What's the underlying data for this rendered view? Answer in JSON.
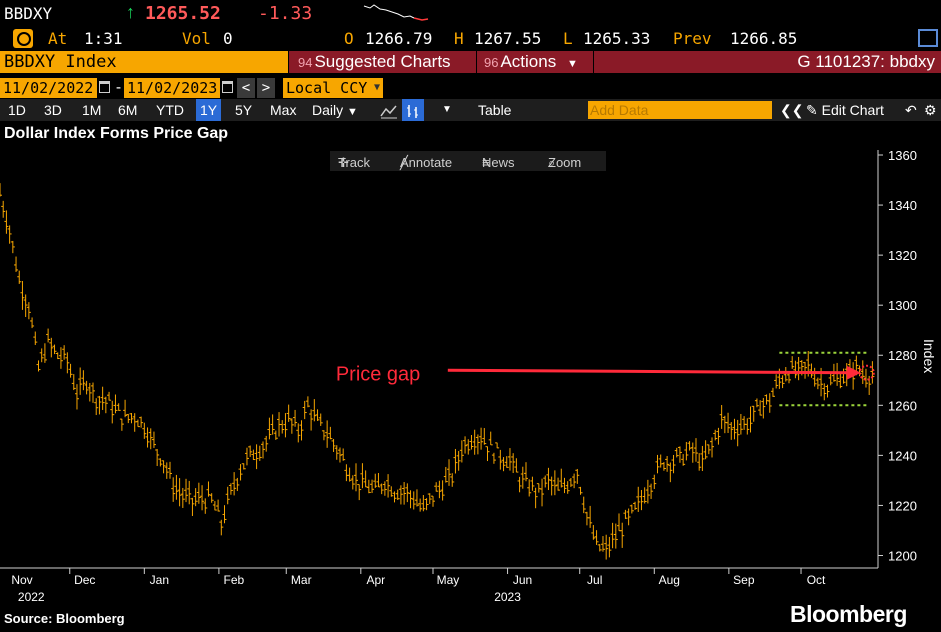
{
  "quote": {
    "ticker": "BBDXY",
    "last_price": "1265.52",
    "change": "-1.33",
    "direction_icon": "up-arrow-icon",
    "up_color": "#19d35a",
    "down_color": "#ff5a5a"
  },
  "stats": {
    "at_label": "At",
    "at_value": "1:31",
    "vol_label": "Vol",
    "vol_value": "0",
    "open_label": "O",
    "open_value": "1266.79",
    "high_label": "H",
    "high_value": "1267.55",
    "low_label": "L",
    "low_value": "1265.33",
    "prev_label": "Prev",
    "prev_value": "1266.85"
  },
  "security": {
    "name": "BBDXY Index",
    "suggested_num": "94",
    "suggested_label": "Suggested Charts",
    "actions_num": "96",
    "actions_label": "Actions",
    "chart_id": "G 1101237: bbdxy"
  },
  "range": {
    "start_date": "11/02/2022",
    "end_date": "11/02/2023",
    "dash": "-",
    "prev_btn": "<",
    "next_btn": ">",
    "currency": "Local CCY"
  },
  "toolbar": {
    "periods": [
      "1D",
      "3D",
      "1M",
      "6M",
      "YTD",
      "1Y",
      "5Y",
      "Max"
    ],
    "active_period": "1Y",
    "frequency": "Daily",
    "table_label": "Table",
    "add_data_placeholder": "Add Data",
    "edit_chart_label": "Edit Chart"
  },
  "chart_tools": {
    "track": "Track",
    "annotate": "Annotate",
    "news": "News",
    "zoom": "Zoom"
  },
  "footer": {
    "source": "Source: Bloomberg",
    "logo": "Bloomberg"
  },
  "chart_data": {
    "type": "line",
    "title": "Dollar Index Forms Price Gap",
    "ylabel": "Index",
    "ylim": [
      1195,
      1362
    ],
    "yticks": [
      1200,
      1220,
      1240,
      1260,
      1280,
      1300,
      1320,
      1340,
      1360
    ],
    "xlim": [
      "2022-11-02",
      "2023-11-02"
    ],
    "x_months": [
      {
        "label": "Nov",
        "date": "2022-11-01"
      },
      {
        "label": "Dec",
        "date": "2022-12-01"
      },
      {
        "label": "Jan",
        "date": "2023-01-01"
      },
      {
        "label": "Feb",
        "date": "2023-02-01"
      },
      {
        "label": "Mar",
        "date": "2023-03-01"
      },
      {
        "label": "Apr",
        "date": "2023-04-01"
      },
      {
        "label": "May",
        "date": "2023-05-01"
      },
      {
        "label": "Jun",
        "date": "2023-06-01"
      },
      {
        "label": "Jul",
        "date": "2023-07-01"
      },
      {
        "label": "Aug",
        "date": "2023-08-01"
      },
      {
        "label": "Sep",
        "date": "2023-09-01"
      },
      {
        "label": "Oct",
        "date": "2023-10-01"
      }
    ],
    "year_labels": [
      {
        "label": "2022",
        "date": "2022-11-15"
      },
      {
        "label": "2023",
        "date": "2023-06-01"
      }
    ],
    "series_color": "#f7a600",
    "series": [
      {
        "x": [
          "2022-11-02",
          "2022-11-06",
          "2022-11-10",
          "2022-11-14",
          "2022-11-18",
          "2022-11-22",
          "2022-11-26",
          "2022-11-30",
          "2022-12-04",
          "2022-12-08",
          "2022-12-12",
          "2022-12-16",
          "2022-12-20",
          "2022-12-24",
          "2022-12-28",
          "2023-01-01",
          "2023-01-05",
          "2023-01-09",
          "2023-01-13",
          "2023-01-17",
          "2023-01-21",
          "2023-01-25",
          "2023-01-29",
          "2023-02-02",
          "2023-02-06",
          "2023-02-10",
          "2023-02-14",
          "2023-02-18",
          "2023-02-22",
          "2023-02-26",
          "2023-03-02",
          "2023-03-06",
          "2023-03-10",
          "2023-03-14",
          "2023-03-18",
          "2023-03-22",
          "2023-03-26",
          "2023-03-30",
          "2023-04-03",
          "2023-04-07",
          "2023-04-11",
          "2023-04-15",
          "2023-04-19",
          "2023-04-23",
          "2023-04-27",
          "2023-05-01",
          "2023-05-05",
          "2023-05-09",
          "2023-05-13",
          "2023-05-17",
          "2023-05-21",
          "2023-05-25",
          "2023-05-29",
          "2023-06-02",
          "2023-06-06",
          "2023-06-10",
          "2023-06-14",
          "2023-06-18",
          "2023-06-22",
          "2023-06-26",
          "2023-06-30",
          "2023-07-04",
          "2023-07-08",
          "2023-07-12",
          "2023-07-16",
          "2023-07-20",
          "2023-07-24",
          "2023-07-28",
          "2023-08-01",
          "2023-08-05",
          "2023-08-09",
          "2023-08-13",
          "2023-08-17",
          "2023-08-21",
          "2023-08-25",
          "2023-08-29",
          "2023-09-02",
          "2023-09-06",
          "2023-09-10",
          "2023-09-14",
          "2023-09-18",
          "2023-09-22",
          "2023-09-26",
          "2023-09-30",
          "2023-10-04",
          "2023-10-08",
          "2023-10-12",
          "2023-10-16",
          "2023-10-20",
          "2023-10-24",
          "2023-10-28",
          "2023-11-01"
        ],
        "values": [
          1345,
          1330,
          1310,
          1300,
          1275,
          1285,
          1280,
          1278,
          1265,
          1270,
          1263,
          1262,
          1258,
          1255,
          1256,
          1252,
          1244,
          1238,
          1228,
          1224,
          1222,
          1223,
          1222,
          1213,
          1225,
          1235,
          1240,
          1243,
          1247,
          1252,
          1254,
          1250,
          1260,
          1253,
          1249,
          1243,
          1236,
          1230,
          1228,
          1226,
          1230,
          1226,
          1226,
          1223,
          1218,
          1224,
          1228,
          1232,
          1243,
          1247,
          1248,
          1243,
          1240,
          1238,
          1231,
          1228,
          1225,
          1230,
          1226,
          1229,
          1234,
          1216,
          1204,
          1202,
          1208,
          1213,
          1218,
          1225,
          1232,
          1238,
          1238,
          1240,
          1242,
          1237,
          1244,
          1254,
          1251,
          1252,
          1254,
          1260,
          1262,
          1270,
          1274,
          1273,
          1276,
          1270,
          1268,
          1271,
          1272,
          1275,
          1272,
          1273
        ]
      }
    ],
    "annotations": [
      {
        "text": "Price gap",
        "color": "#ff2a3a",
        "from": [
          "2023-05-08",
          1274
        ],
        "to": [
          "2023-10-30",
          1273
        ]
      }
    ],
    "gap_band": {
      "low": 1260,
      "high": 1281,
      "from": "2023-09-22",
      "to": "2023-11-02",
      "color": "#9bd43a"
    }
  }
}
